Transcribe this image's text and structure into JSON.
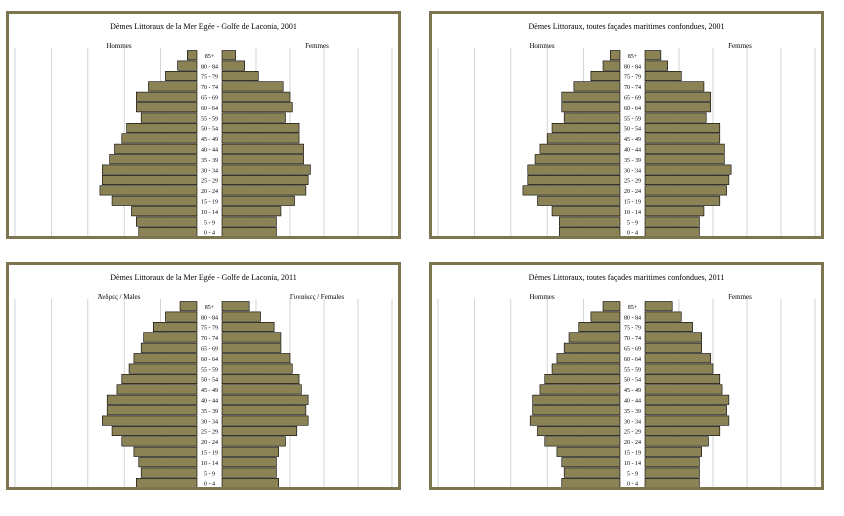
{
  "ages": [
    "85+",
    "80 - 84",
    "75 - 79",
    "70 - 74",
    "65 - 69",
    "60 - 64",
    "55 - 59",
    "50 - 54",
    "45 - 49",
    "40 - 44",
    "35 - 39",
    "30 - 34",
    "25 - 29",
    "20 - 24",
    "15 - 19",
    "10 - 14",
    "5 - 9",
    "0 - 4"
  ],
  "ticks_left": [
    "7.5",
    "6.0",
    "4.5",
    "3.0",
    "1.5",
    "0.0"
  ],
  "ticks_right": [
    "0.0",
    "1.5",
    "3.0",
    "4.5",
    "6.0",
    "7.5"
  ],
  "colors": {
    "bar": "#8b8256",
    "bar_stroke": "#000000",
    "frame": "#7d7450",
    "grid": "#c8c8c8"
  },
  "chart_data": [
    {
      "type": "bar",
      "title": "Dèmes Littoraux de la Mer Egée - Golfe de Laconia, 2001",
      "left_label": "Hommes",
      "right_label": "Femmes",
      "xlim": [
        0,
        7.5
      ],
      "males": [
        0.4,
        0.8,
        1.3,
        2.0,
        2.5,
        2.5,
        2.3,
        2.9,
        3.1,
        3.4,
        3.6,
        3.9,
        3.9,
        4.0,
        3.5,
        2.7,
        2.5,
        2.4
      ],
      "females": [
        0.6,
        1.0,
        1.6,
        2.7,
        3.0,
        3.1,
        2.8,
        3.4,
        3.4,
        3.6,
        3.6,
        3.9,
        3.8,
        3.7,
        3.2,
        2.6,
        2.4,
        2.4
      ]
    },
    {
      "type": "bar",
      "title": "Dèmes Littoraux, toutes façades maritimes confondues, 2001",
      "left_label": "Hommes",
      "right_label": "Femmes",
      "xlim": [
        0,
        7.5
      ],
      "males": [
        0.4,
        0.7,
        1.2,
        1.9,
        2.4,
        2.4,
        2.3,
        2.8,
        3.0,
        3.3,
        3.5,
        3.8,
        3.8,
        4.0,
        3.4,
        2.8,
        2.5,
        2.5
      ],
      "females": [
        0.7,
        1.0,
        1.6,
        2.6,
        2.9,
        2.9,
        2.7,
        3.3,
        3.3,
        3.5,
        3.5,
        3.8,
        3.7,
        3.6,
        3.3,
        2.6,
        2.4,
        2.4
      ]
    },
    {
      "type": "bar",
      "title": "Dèmes Littoraux de la Mer Egée - Golfe de Laconia, 2011",
      "left_label": "Άνδρες / Males",
      "right_label": "Γυναίκες / Females",
      "xlim": [
        0,
        7.5
      ],
      "males": [
        0.7,
        1.3,
        1.8,
        2.2,
        2.3,
        2.6,
        2.8,
        3.1,
        3.3,
        3.7,
        3.7,
        3.9,
        3.5,
        3.1,
        2.6,
        2.4,
        2.3,
        2.5
      ],
      "females": [
        1.2,
        1.7,
        2.3,
        2.6,
        2.6,
        3.0,
        3.1,
        3.4,
        3.5,
        3.8,
        3.7,
        3.8,
        3.3,
        2.8,
        2.5,
        2.4,
        2.4,
        2.5
      ]
    },
    {
      "type": "bar",
      "title": "Dèmes Littoraux, toutes façades maritimes confondues, 2011",
      "left_label": "Hommes",
      "right_label": "Femmes",
      "xlim": [
        0,
        7.5
      ],
      "males": [
        0.7,
        1.2,
        1.7,
        2.1,
        2.3,
        2.6,
        2.8,
        3.1,
        3.3,
        3.6,
        3.6,
        3.7,
        3.4,
        3.1,
        2.6,
        2.4,
        2.3,
        2.4
      ],
      "females": [
        1.2,
        1.6,
        2.1,
        2.5,
        2.5,
        2.9,
        3.0,
        3.3,
        3.4,
        3.7,
        3.6,
        3.7,
        3.3,
        2.8,
        2.5,
        2.4,
        2.4,
        2.4
      ]
    }
  ]
}
